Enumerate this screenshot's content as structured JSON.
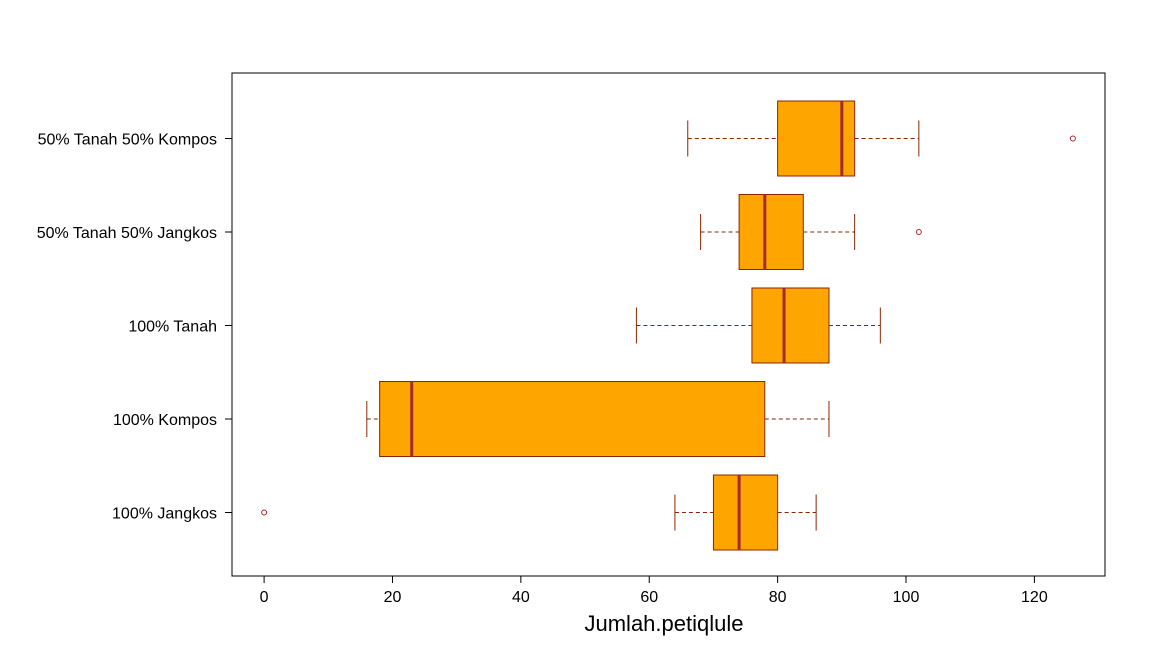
{
  "chart_data": {
    "type": "boxplot",
    "orientation": "horizontal",
    "title": "",
    "xlabel": "Jumlah.petiqlule",
    "ylabel": "",
    "xlim": [
      -5,
      131
    ],
    "xticks": [
      0,
      20,
      40,
      60,
      80,
      100,
      120
    ],
    "xtick_labels": [
      "0",
      "20",
      "40",
      "60",
      "80",
      "100",
      "120"
    ],
    "grid": false,
    "legend": "none",
    "categories": [
      "100% Jangkos",
      "100% Kompos",
      "100% Tanah",
      "50% Tanah 50% Jangkos",
      "50% Tanah 50% Kompos"
    ],
    "series": [
      {
        "category": "100% Jangkos",
        "whisker_low": 64,
        "q1": 70,
        "median": 74,
        "q3": 80,
        "whisker_high": 86,
        "outliers": [
          0
        ]
      },
      {
        "category": "100% Kompos",
        "whisker_low": 16,
        "q1": 18,
        "median": 23,
        "q3": 78,
        "whisker_high": 88,
        "outliers": []
      },
      {
        "category": "100% Tanah",
        "whisker_low": 58,
        "q1": 76,
        "median": 81,
        "q3": 88,
        "whisker_high": 96,
        "outliers": []
      },
      {
        "category": "50% Tanah 50% Jangkos",
        "whisker_low": 68,
        "q1": 74,
        "median": 78,
        "q3": 84,
        "whisker_high": 92,
        "outliers": [
          102
        ]
      },
      {
        "category": "50% Tanah 50% Kompos",
        "whisker_low": 66,
        "q1": 80,
        "median": 90,
        "q3": 92,
        "whisker_high": 102,
        "outliers": [
          126
        ]
      }
    ],
    "colors": {
      "box_fill": "#FFA500",
      "box_border": "#8B2500",
      "median": "#A52A2A",
      "whisker": "#8B2500",
      "outlier": "#A52A2A",
      "axis": "#000000"
    }
  }
}
